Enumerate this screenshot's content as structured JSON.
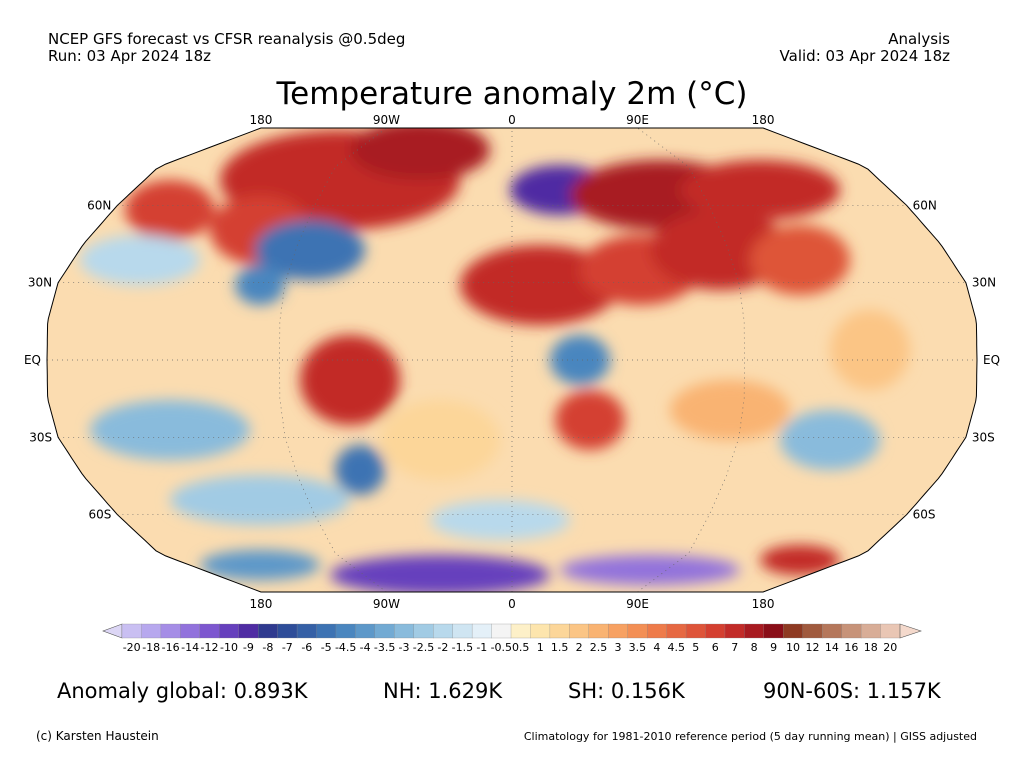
{
  "header": {
    "line1_left": "NCEP GFS forecast vs CFSR reanalysis @0.5deg",
    "line2_left": "Run: 03 Apr 2024 18z",
    "line1_right": "Analysis",
    "line2_right": "Valid: 03 Apr 2024 18z"
  },
  "title": "Temperature anomaly 2m (°C)",
  "lon_labels_top": [
    "180",
    "90W",
    "0",
    "90E",
    "180"
  ],
  "lon_labels_bottom": [
    "180",
    "90W",
    "0",
    "90E",
    "180"
  ],
  "lat_labels_left": [
    "60N",
    "30N",
    "EQ",
    "30S",
    "60S"
  ],
  "lat_labels_right": [
    "60N",
    "30N",
    "EQ",
    "30S",
    "60S"
  ],
  "colorbar": {
    "labels": [
      "-20",
      "-18",
      "-16",
      "-14",
      "-12",
      "-10",
      "-9",
      "-8",
      "-7",
      "-6",
      "-5",
      "-4.5",
      "-4",
      "-3.5",
      "-3",
      "-2.5",
      "-2",
      "-1.5",
      "-1",
      "-0.5",
      "0.5",
      "1",
      "1.5",
      "2",
      "2.5",
      "3",
      "3.5",
      "4",
      "4.5",
      "5",
      "6",
      "7",
      "8",
      "9",
      "10",
      "12",
      "14",
      "16",
      "18",
      "20"
    ],
    "colors": [
      "#c9bff2",
      "#b7a8ee",
      "#a58de6",
      "#9272dc",
      "#7d57cf",
      "#6640bd",
      "#4f2ca3",
      "#2f3a8f",
      "#2e4d99",
      "#3560a6",
      "#3d73b3",
      "#4a86bf",
      "#5d98c9",
      "#72aad3",
      "#89bbdc",
      "#a1cbe4",
      "#b8d9ec",
      "#cfe5f2",
      "#e4f0f8",
      "#f4f4f4",
      "#fdf0c8",
      "#fde5ad",
      "#fcd699",
      "#fbc585",
      "#f9b372",
      "#f7a162",
      "#f38f55",
      "#ee7b4a",
      "#e66842",
      "#de5439",
      "#d43f30",
      "#c22b28",
      "#a81a20",
      "#8a0e18",
      "#8e3a22",
      "#a05a3e",
      "#b5775b",
      "#c79379",
      "#d8ad97",
      "#e9c6b4"
    ],
    "under_color": "#dcd6f5",
    "over_color": "#f4d9cc"
  },
  "stats": {
    "global": "Anomaly global: 0.893K",
    "nh": "NH: 1.629K",
    "sh": "SH: 0.156K",
    "arctic": "90N-60S: 1.157K"
  },
  "credit": "(c) Karsten Haustein",
  "climatology": "Climatology for 1981-2010 reference period (5 day running mean) | GISS adjusted"
}
